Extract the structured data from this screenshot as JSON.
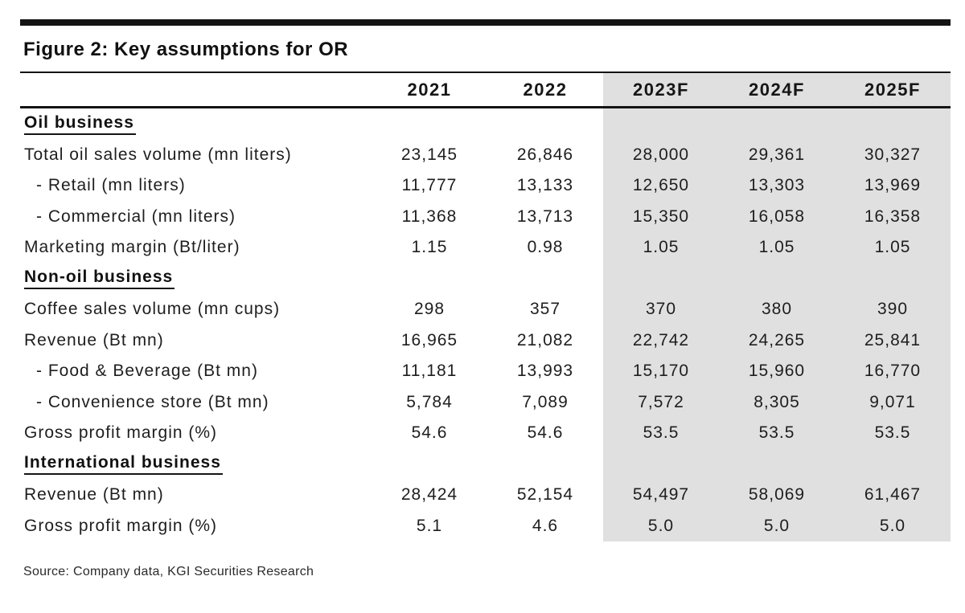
{
  "figure": {
    "title": "Figure 2: Key assumptions for OR",
    "source": "Source: Company data, KGI Securities Research"
  },
  "table": {
    "columns": [
      "2021",
      "2022",
      "2023F",
      "2024F",
      "2025F"
    ],
    "forecast_columns": [
      "2023F",
      "2024F",
      "2025F"
    ],
    "rows": [
      {
        "type": "section",
        "label": "Oil business"
      },
      {
        "type": "data",
        "indent": false,
        "label": "Total oil sales volume (mn liters)",
        "values": [
          "23,145",
          "26,846",
          "28,000",
          "29,361",
          "30,327"
        ]
      },
      {
        "type": "data",
        "indent": true,
        "label": "- Retail (mn liters)",
        "values": [
          "11,777",
          "13,133",
          "12,650",
          "13,303",
          "13,969"
        ]
      },
      {
        "type": "data",
        "indent": true,
        "label": "- Commercial (mn liters)",
        "values": [
          "11,368",
          "13,713",
          "15,350",
          "16,058",
          "16,358"
        ]
      },
      {
        "type": "data",
        "indent": false,
        "label": "Marketing margin (Bt/liter)",
        "values": [
          "1.15",
          "0.98",
          "1.05",
          "1.05",
          "1.05"
        ]
      },
      {
        "type": "section",
        "label": "Non-oil business"
      },
      {
        "type": "data",
        "indent": false,
        "label": "Coffee sales volume (mn cups)",
        "values": [
          "298",
          "357",
          "370",
          "380",
          "390"
        ]
      },
      {
        "type": "data",
        "indent": false,
        "label": "Revenue (Bt mn)",
        "values": [
          "16,965",
          "21,082",
          "22,742",
          "24,265",
          "25,841"
        ]
      },
      {
        "type": "data",
        "indent": true,
        "label": "- Food & Beverage (Bt mn)",
        "values": [
          "11,181",
          "13,993",
          "15,170",
          "15,960",
          "16,770"
        ]
      },
      {
        "type": "data",
        "indent": true,
        "label": "- Convenience store (Bt mn)",
        "values": [
          "5,784",
          "7,089",
          "7,572",
          "8,305",
          "9,071"
        ]
      },
      {
        "type": "data",
        "indent": false,
        "label": "Gross profit margin (%)",
        "values": [
          "54.6",
          "54.6",
          "53.5",
          "53.5",
          "53.5"
        ]
      },
      {
        "type": "section",
        "label": "International business"
      },
      {
        "type": "data",
        "indent": false,
        "label": "Revenue (Bt mn)",
        "values": [
          "28,424",
          "52,154",
          "54,497",
          "58,069",
          "61,467"
        ]
      },
      {
        "type": "data",
        "indent": false,
        "label": "Gross profit margin (%)",
        "values": [
          "5.1",
          "4.6",
          "5.0",
          "5.0",
          "5.0"
        ]
      }
    ]
  },
  "colors": {
    "forecast_band": "#e0e0e0",
    "rule": "#141414",
    "text": "#1b1b1b"
  }
}
